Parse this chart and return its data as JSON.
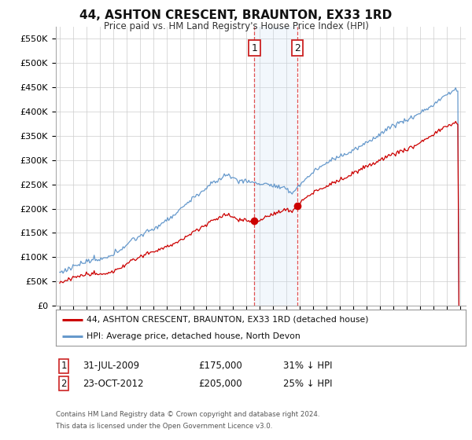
{
  "title": "44, ASHTON CRESCENT, BRAUNTON, EX33 1RD",
  "subtitle": "Price paid vs. HM Land Registry's House Price Index (HPI)",
  "legend_line1": "44, ASHTON CRESCENT, BRAUNTON, EX33 1RD (detached house)",
  "legend_line2": "HPI: Average price, detached house, North Devon",
  "footnote1": "Contains HM Land Registry data © Crown copyright and database right 2024.",
  "footnote2": "This data is licensed under the Open Government Licence v3.0.",
  "red_color": "#cc0000",
  "blue_color": "#6699cc",
  "shading_color": "#cce0f5",
  "background_color": "#ffffff",
  "grid_color": "#cccccc",
  "ylim": [
    0,
    575000
  ],
  "yticks": [
    0,
    50000,
    100000,
    150000,
    200000,
    250000,
    300000,
    350000,
    400000,
    450000,
    500000,
    550000
  ],
  "ytick_labels": [
    "£0",
    "£50K",
    "£100K",
    "£150K",
    "£200K",
    "£250K",
    "£300K",
    "£350K",
    "£400K",
    "£450K",
    "£500K",
    "£550K"
  ],
  "sale1_x": 2009.58,
  "sale2_x": 2012.81,
  "sale1_price": 175000,
  "sale2_price": 205000,
  "sale1_date_label": "31-JUL-2009",
  "sale2_date_label": "23-OCT-2012",
  "sale1_hpi_label": "31% ↓ HPI",
  "sale2_hpi_label": "25% ↓ HPI",
  "sale1_price_label": "£175,000",
  "sale2_price_label": "£205,000"
}
